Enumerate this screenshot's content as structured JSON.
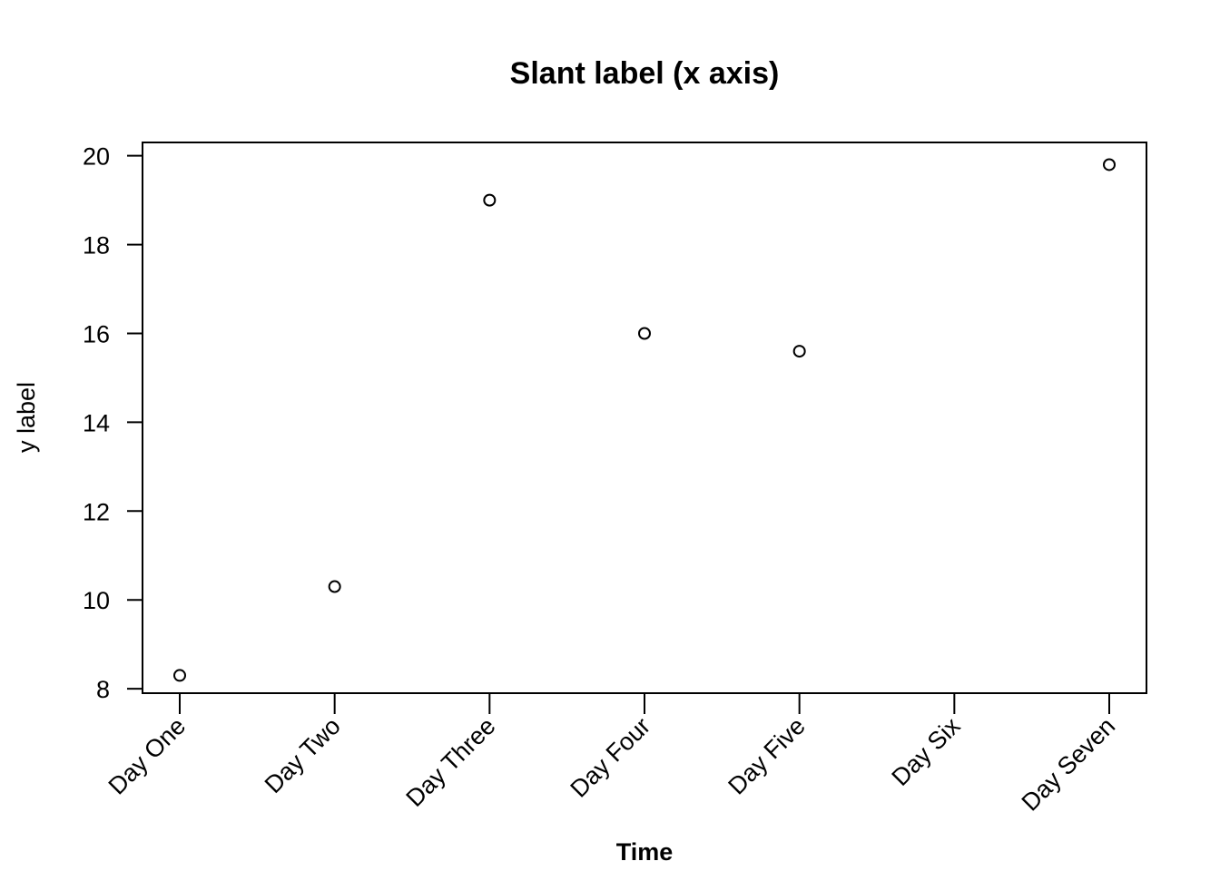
{
  "chart_data": {
    "type": "scatter",
    "title": "Slant label (x axis)",
    "xlabel": "Time",
    "ylabel": "y label",
    "categories": [
      "Day One",
      "Day Two",
      "Day Three",
      "Day Four",
      "Day Five",
      "Day Six",
      "Day Seven"
    ],
    "series": [
      {
        "values": [
          8.3,
          10.3,
          19.0,
          16.0,
          15.6,
          null,
          19.8
        ]
      }
    ],
    "yticks": [
      8,
      10,
      12,
      14,
      16,
      18,
      20
    ],
    "ylim": [
      7.9,
      20.3
    ],
    "grid": false,
    "x_tick_label_rotation": "slanted 45 degrees"
  }
}
